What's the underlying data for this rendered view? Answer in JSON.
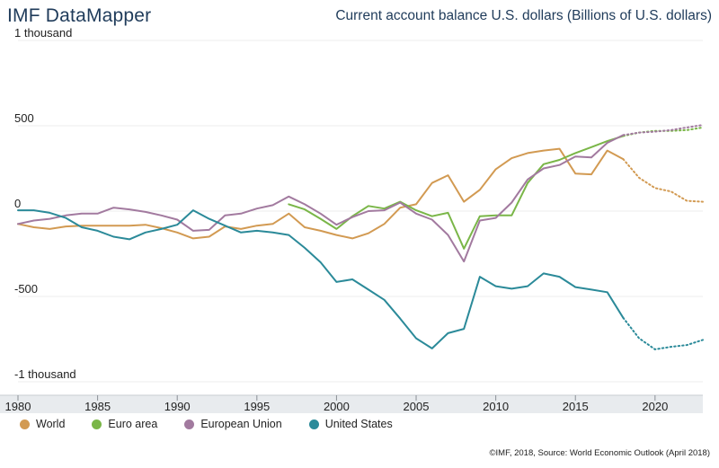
{
  "header": {
    "brand": "IMF DataMapper",
    "subtitle": "Current account balance U.S. dollars (Billions of U.S. dollars)"
  },
  "footer": {
    "source": "©IMF, 2018, Source: World Economic Outlook (April 2018)"
  },
  "chart_data": {
    "type": "line",
    "title": "Current account balance U.S. dollars (Billions of U.S. dollars)",
    "xlabel": "",
    "ylabel": "",
    "xlim": [
      1980,
      2023
    ],
    "ylim": [
      -1000,
      1000
    ],
    "y_ticks": [
      {
        "value": 1000,
        "label": "1 thousand"
      },
      {
        "value": 500,
        "label": "500"
      },
      {
        "value": 0,
        "label": "0"
      },
      {
        "value": -500,
        "label": "-500"
      },
      {
        "value": -1000,
        "label": "-1 thousand"
      }
    ],
    "x_ticks": [
      1980,
      1985,
      1990,
      1995,
      2000,
      2005,
      2010,
      2015,
      2020
    ],
    "actual_end_year": 2018,
    "legend_position": "bottom",
    "series": [
      {
        "name": "World",
        "color": "#d29a52",
        "x": [
          1980,
          1981,
          1982,
          1983,
          1984,
          1985,
          1986,
          1987,
          1988,
          1989,
          1990,
          1991,
          1992,
          1993,
          1994,
          1995,
          1996,
          1997,
          1998,
          1999,
          2000,
          2001,
          2002,
          2003,
          2004,
          2005,
          2006,
          2007,
          2008,
          2009,
          2010,
          2011,
          2012,
          2013,
          2014,
          2015,
          2016,
          2017,
          2018,
          2019,
          2020,
          2021,
          2022,
          2023
        ],
        "values": [
          -75,
          -95,
          -105,
          -90,
          -85,
          -85,
          -85,
          -85,
          -80,
          -100,
          -125,
          -160,
          -150,
          -90,
          -105,
          -85,
          -75,
          -15,
          -95,
          -115,
          -140,
          -160,
          -130,
          -75,
          20,
          40,
          165,
          210,
          55,
          125,
          245,
          310,
          340,
          355,
          365,
          220,
          215,
          355,
          305,
          195,
          135,
          115,
          60,
          55
        ]
      },
      {
        "name": "Euro area",
        "color": "#7ab648",
        "x": [
          1997,
          1998,
          1999,
          2000,
          2001,
          2002,
          2003,
          2004,
          2005,
          2006,
          2007,
          2008,
          2009,
          2010,
          2011,
          2012,
          2013,
          2014,
          2015,
          2016,
          2017,
          2018,
          2019,
          2020,
          2021,
          2022,
          2023
        ],
        "values": [
          40,
          10,
          -45,
          -105,
          -30,
          30,
          15,
          55,
          5,
          -30,
          -10,
          -220,
          -30,
          -25,
          -25,
          165,
          275,
          300,
          340,
          375,
          410,
          440,
          460,
          470,
          470,
          475,
          490
        ]
      },
      {
        "name": "European Union",
        "color": "#a27a9f",
        "x": [
          1980,
          1981,
          1982,
          1983,
          1984,
          1985,
          1986,
          1987,
          1988,
          1989,
          1990,
          1991,
          1992,
          1993,
          1994,
          1995,
          1996,
          1997,
          1998,
          1999,
          2000,
          2001,
          2002,
          2003,
          2004,
          2005,
          2006,
          2007,
          2008,
          2009,
          2010,
          2011,
          2012,
          2013,
          2014,
          2015,
          2016,
          2017,
          2018,
          2019,
          2020,
          2021,
          2022,
          2023
        ],
        "values": [
          -75,
          -55,
          -45,
          -25,
          -15,
          -15,
          20,
          10,
          -5,
          -25,
          -50,
          -115,
          -110,
          -25,
          -15,
          15,
          35,
          85,
          40,
          -15,
          -80,
          -35,
          0,
          5,
          50,
          -15,
          -50,
          -140,
          -295,
          -55,
          -40,
          50,
          185,
          250,
          270,
          320,
          315,
          400,
          445,
          460,
          465,
          475,
          490,
          505
        ]
      },
      {
        "name": "United States",
        "color": "#2b8a99",
        "x": [
          1980,
          1981,
          1982,
          1983,
          1984,
          1985,
          1986,
          1987,
          1988,
          1989,
          1990,
          1991,
          1992,
          1993,
          1994,
          1995,
          1996,
          1997,
          1998,
          1999,
          2000,
          2001,
          2002,
          2003,
          2004,
          2005,
          2006,
          2007,
          2008,
          2009,
          2010,
          2011,
          2012,
          2013,
          2014,
          2015,
          2016,
          2017,
          2018,
          2019,
          2020,
          2021,
          2022,
          2023
        ],
        "values": [
          5,
          5,
          -10,
          -40,
          -95,
          -115,
          -150,
          -165,
          -125,
          -105,
          -80,
          5,
          -45,
          -85,
          -125,
          -115,
          -125,
          -140,
          -215,
          -300,
          -415,
          -400,
          -460,
          -520,
          -630,
          -745,
          -805,
          -715,
          -690,
          -385,
          -440,
          -455,
          -440,
          -365,
          -385,
          -445,
          -460,
          -475,
          -625,
          -745,
          -810,
          -795,
          -785,
          -755
        ]
      }
    ]
  }
}
